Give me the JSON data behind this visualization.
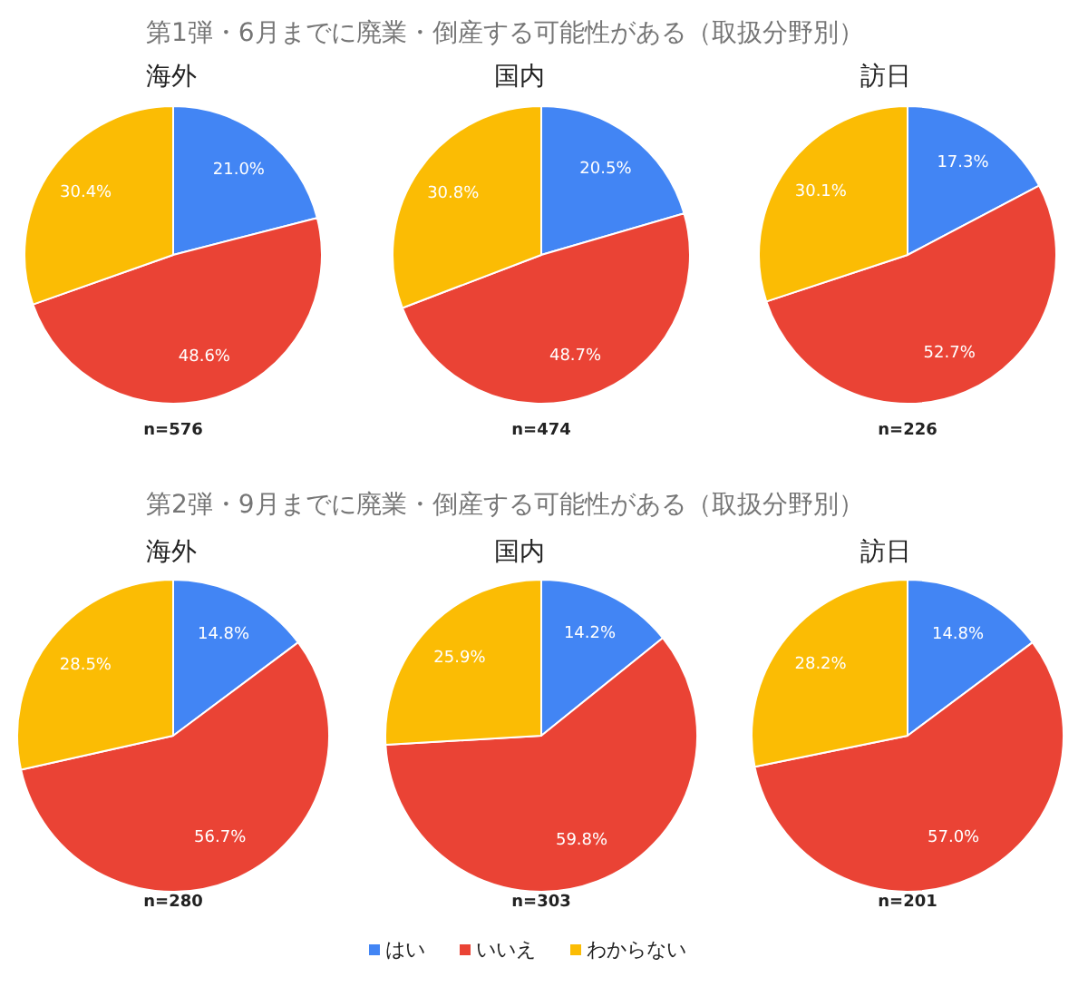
{
  "chart_data": [
    {
      "type": "pie",
      "title": "第1弾・6月までに廃業・倒産する可能性がある（取扱分野別）",
      "subtitle": "海外",
      "categories": [
        "はい",
        "いいえ",
        "わからない"
      ],
      "values": [
        21.0,
        48.6,
        30.4
      ],
      "colors": [
        "#4285f4",
        "#ea4335",
        "#fbbc04"
      ],
      "value_labels": [
        "21.0%",
        "48.6%",
        "30.4%"
      ],
      "annotations": [
        "n=576"
      ],
      "legend": "bottom"
    },
    {
      "type": "pie",
      "subtitle": "国内",
      "values": [
        20.5,
        48.7,
        30.8
      ],
      "colors": [
        "#4285f4",
        "#ea4335",
        "#fbbc04"
      ],
      "value_labels": [
        "20.5%",
        "48.7%",
        "30.8%"
      ],
      "annotations": [
        "n=474"
      ]
    },
    {
      "type": "pie",
      "subtitle": "訪日",
      "values": [
        17.3,
        52.7,
        30.1
      ],
      "colors": [
        "#4285f4",
        "#ea4335",
        "#fbbc04"
      ],
      "value_labels": [
        "17.3%",
        "52.7%",
        "30.1%"
      ],
      "annotations": [
        "n=226"
      ]
    },
    {
      "type": "pie",
      "title": "第2弾・9月までに廃業・倒産する可能性がある（取扱分野別）",
      "subtitle": "海外",
      "values": [
        14.8,
        56.7,
        28.5
      ],
      "colors": [
        "#4285f4",
        "#ea4335",
        "#fbbc04"
      ],
      "value_labels": [
        "14.8%",
        "56.7%",
        "28.5%"
      ],
      "annotations": [
        "n=280"
      ]
    },
    {
      "type": "pie",
      "subtitle": "国内",
      "values": [
        14.2,
        59.8,
        25.9
      ],
      "colors": [
        "#4285f4",
        "#ea4335",
        "#fbbc04"
      ],
      "value_labels": [
        "14.2%",
        "59.8%",
        "25.9%"
      ],
      "annotations": [
        "n=303"
      ]
    },
    {
      "type": "pie",
      "subtitle": "訪日",
      "values": [
        14.8,
        57.0,
        28.2
      ],
      "colors": [
        "#4285f4",
        "#ea4335",
        "#fbbc04"
      ],
      "value_labels": [
        "14.8%",
        "57.0%",
        "28.2%"
      ],
      "annotations": [
        "n=201"
      ]
    }
  ]
}
